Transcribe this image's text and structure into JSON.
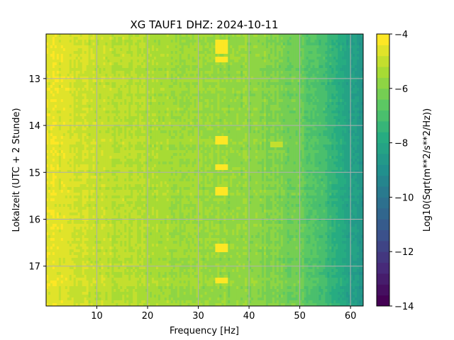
{
  "chart_data": {
    "type": "heatmap",
    "title": "XG TAUF1  DHZ: 2024-10-11",
    "xlabel": "Frequency [Hz]",
    "ylabel": "Lokalzeit (UTC + 2 Stunde)",
    "xlim": [
      0,
      62.5
    ],
    "ylim": [
      12.05,
      17.85
    ],
    "y_inverted": true,
    "x_ticks": [
      10,
      20,
      30,
      40,
      50,
      60
    ],
    "y_ticks": [
      13,
      14,
      15,
      16,
      17
    ],
    "grid": true,
    "colormap": "viridis",
    "colorbar": {
      "label": "Log10(Sqrt(m**2/s**2/Hz))",
      "range": [
        -14,
        -4
      ],
      "ticks": [
        -4,
        -6,
        -8,
        -10,
        -12,
        -14
      ],
      "levels": 25
    },
    "frequency_profile": [
      {
        "hz": 0,
        "value": -4.5
      },
      {
        "hz": 10,
        "value": -5.0
      },
      {
        "hz": 20,
        "value": -5.3
      },
      {
        "hz": 30,
        "value": -5.6
      },
      {
        "hz": 35,
        "value": -5.7
      },
      {
        "hz": 40,
        "value": -5.8
      },
      {
        "hz": 45,
        "value": -6.0
      },
      {
        "hz": 50,
        "value": -6.4
      },
      {
        "hz": 55,
        "value": -7.2
      },
      {
        "hz": 58,
        "value": -7.8
      },
      {
        "hz": 62.5,
        "value": -8.8
      }
    ],
    "features": [
      {
        "hz": 34.5,
        "hours": [
          12.25,
          12.4,
          12.6,
          14.3,
          14.9,
          15.4,
          16.6,
          17.3
        ],
        "value": -4.3
      },
      {
        "hz": 45.5,
        "hours": [
          14.4
        ],
        "value": -5.2
      }
    ],
    "colors": {
      "low": "#440154",
      "mid": "#21918c",
      "high": "#fde725"
    }
  }
}
